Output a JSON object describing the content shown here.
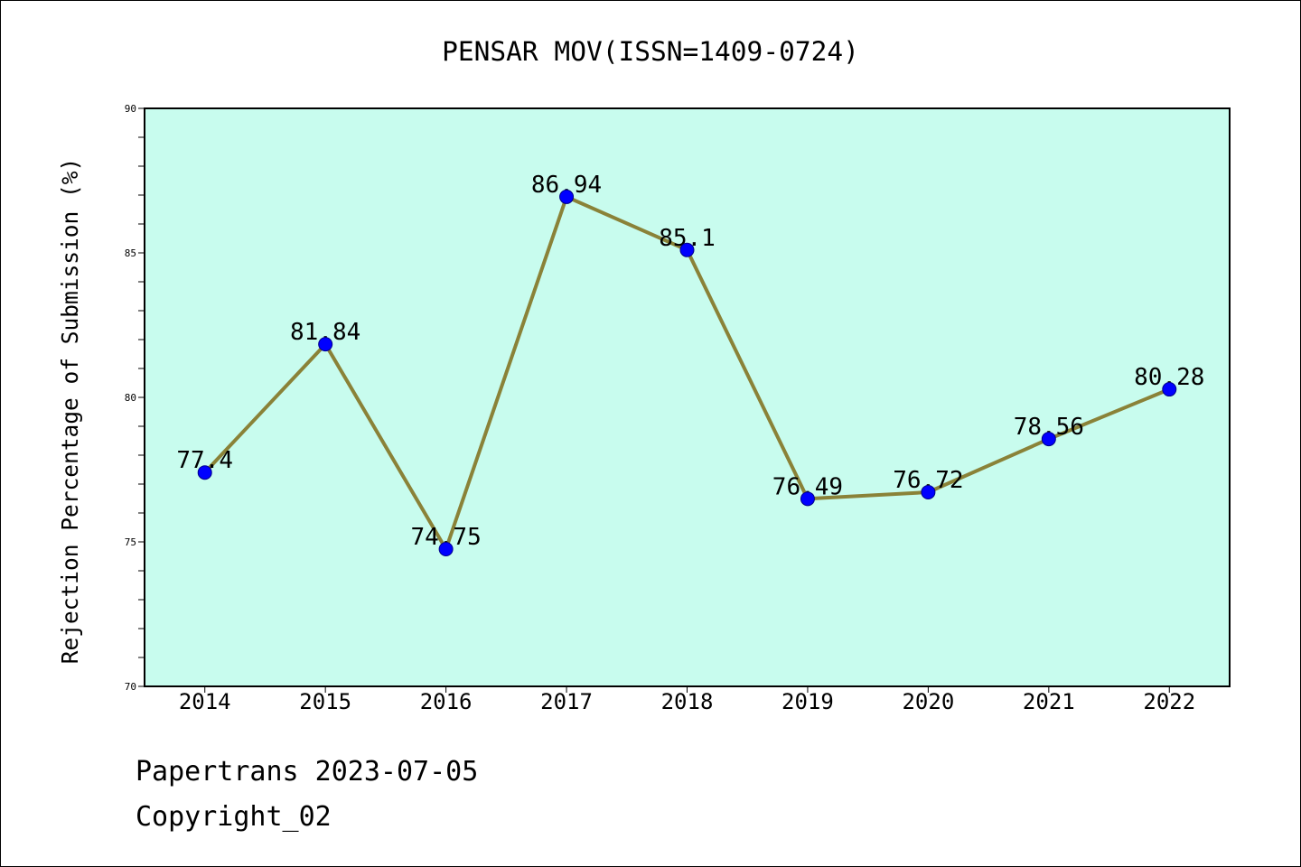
{
  "chart_data": {
    "type": "line",
    "title": "PENSAR MOV(ISSN=1409-0724)",
    "ylabel": "Rejection Percentage of Submission (%)",
    "categories": [
      "2014",
      "2015",
      "2016",
      "2017",
      "2018",
      "2019",
      "2020",
      "2021",
      "2022"
    ],
    "series": [
      {
        "values": [
          77.4,
          81.84,
          74.75,
          86.94,
          85.1,
          76.49,
          76.72,
          78.56,
          80.28
        ]
      }
    ],
    "ylim": [
      70,
      90
    ],
    "y_ticks": [
      70,
      75,
      80,
      85,
      90
    ],
    "y_minor_tick_step": 1,
    "grid": false,
    "legend": false,
    "colors": {
      "plot_background": "#c8fcee",
      "line": "#8a8238",
      "marker_fill": "#0000ff",
      "marker_edge": "#00008b",
      "axes": "#000000"
    }
  },
  "footer": {
    "source_line": "Papertrans 2023-07-05",
    "copyright_line": "Copyright_02"
  }
}
